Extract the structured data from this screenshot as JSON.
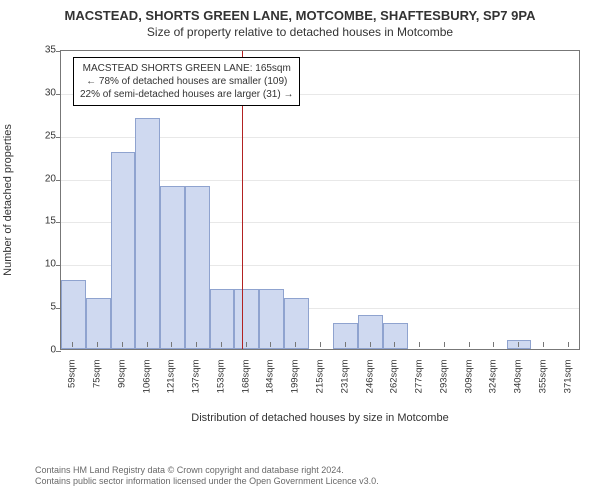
{
  "title_main": "MACSTEAD, SHORTS GREEN LANE, MOTCOMBE, SHAFTESBURY, SP7 9PA",
  "title_sub": "Size of property relative to detached houses in Motcombe",
  "y_axis_label": "Number of detached properties",
  "x_axis_label": "Distribution of detached houses by size in Motcombe",
  "footer_line1": "Contains HM Land Registry data © Crown copyright and database right 2024.",
  "footer_line2": "Contains public sector information licensed under the Open Government Licence v3.0.",
  "chart": {
    "type": "histogram",
    "background_color": "#ffffff",
    "grid_color": "#e8e8e8",
    "axis_color": "#777777",
    "text_color": "#333333",
    "title_fontsize": 13,
    "subtitle_fontsize": 12,
    "label_fontsize": 11,
    "tick_fontsize": 10,
    "ylim": [
      0,
      35
    ],
    "ytick_step": 5,
    "yticks": [
      0,
      5,
      10,
      15,
      20,
      25,
      30,
      35
    ],
    "bar_fill": "#cfd9f0",
    "bar_stroke": "#8fa3cf",
    "bar_width": 1.0,
    "marker_color": "#b22222",
    "marker_value_sqm": 165,
    "categories": [
      "59sqm",
      "75sqm",
      "90sqm",
      "106sqm",
      "121sqm",
      "137sqm",
      "153sqm",
      "168sqm",
      "184sqm",
      "199sqm",
      "215sqm",
      "231sqm",
      "246sqm",
      "262sqm",
      "277sqm",
      "293sqm",
      "309sqm",
      "324sqm",
      "340sqm",
      "355sqm",
      "371sqm"
    ],
    "values": [
      8,
      6,
      23,
      27,
      19,
      19,
      7,
      7,
      7,
      6,
      0,
      3,
      4,
      3,
      0,
      0,
      0,
      0,
      1,
      0,
      0
    ],
    "info_box": {
      "line1": "MACSTEAD SHORTS GREEN LANE: 165sqm",
      "line2": "← 78% of detached houses are smaller (109)",
      "line3": "22% of semi-detached houses are larger (31) →",
      "border_color": "#000000",
      "bg_color": "#ffffff",
      "fontsize": 10
    }
  }
}
